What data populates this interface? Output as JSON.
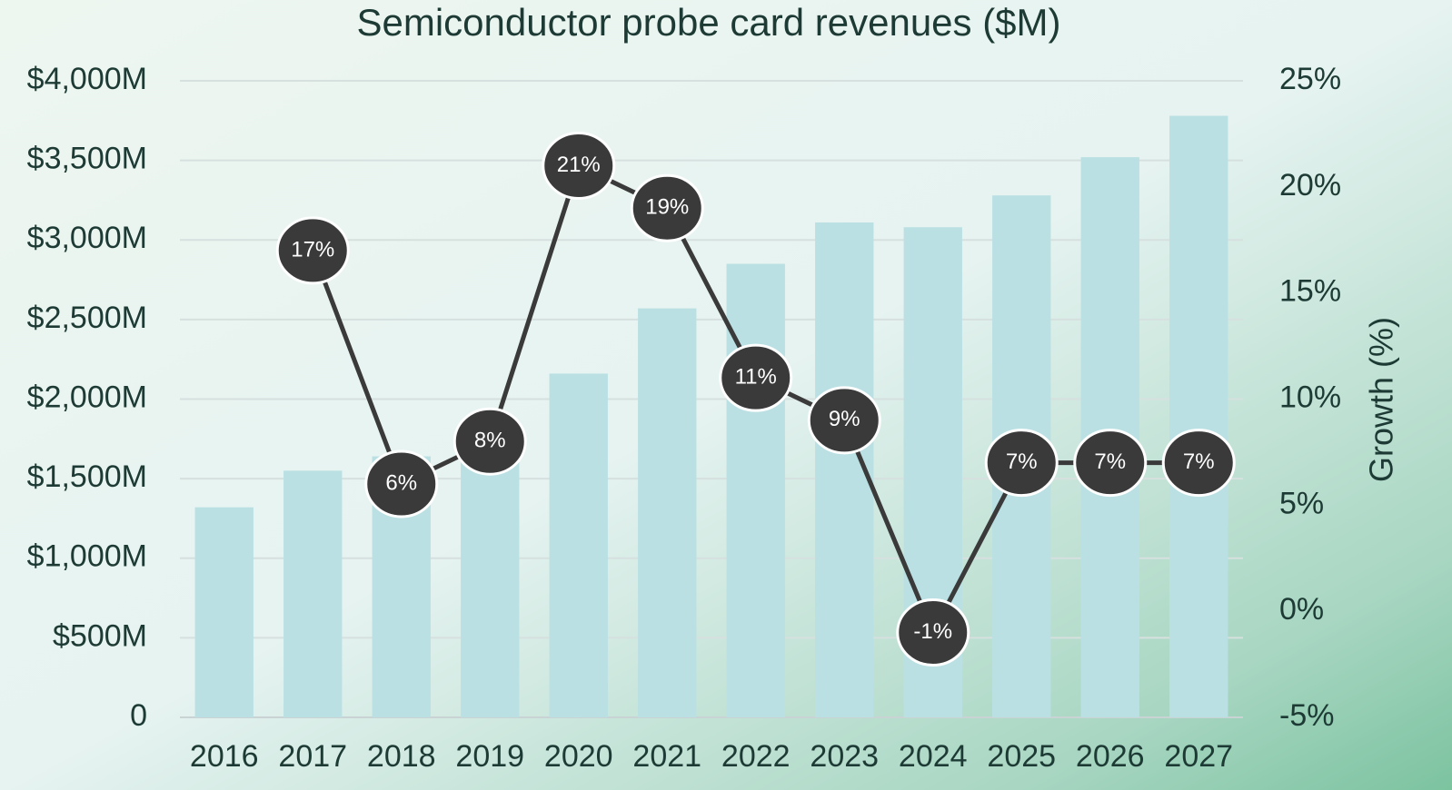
{
  "chart_data": {
    "type": "bar-line",
    "title": "Semiconductor probe card revenues ($M)",
    "y2_label": "Growth (%)",
    "categories": [
      "2016",
      "2017",
      "2018",
      "2019",
      "2020",
      "2021",
      "2022",
      "2023",
      "2024",
      "2025",
      "2026",
      "2027"
    ],
    "series": [
      {
        "type": "bar",
        "color": "#bae0e3",
        "values": [
          1320,
          1550,
          1640,
          1780,
          2160,
          2570,
          2850,
          3110,
          3080,
          3280,
          3520,
          3780
        ]
      },
      {
        "type": "line",
        "axis": "y2",
        "color": "#3a3a3a",
        "values": [
          null,
          17,
          6,
          8,
          21,
          19,
          11,
          9,
          -1,
          7,
          7,
          7
        ],
        "value_labels": [
          null,
          "17%",
          "6%",
          "8%",
          "21%",
          "19%",
          "11%",
          "9%",
          "-1%",
          "7%",
          "7%",
          "7%"
        ]
      }
    ],
    "ylim": [
      0,
      4000
    ],
    "yticks": [
      0,
      {
        "value": 500,
        "label": "$500M"
      },
      {
        "value": 1000,
        "label": "$1,000M"
      },
      {
        "value": 1500,
        "label": "$1,500M"
      },
      {
        "value": 2000,
        "label": "$2,000M"
      },
      {
        "value": 2500,
        "label": "$2,500M"
      },
      {
        "value": 3000,
        "label": "$3,000M"
      },
      {
        "value": 3500,
        "label": "$3,500M"
      },
      {
        "value": 4000,
        "label": "$4,000M"
      }
    ],
    "y2lim": [
      -5,
      25
    ],
    "y2ticks": [
      {
        "value": -5,
        "label": "-5%"
      },
      {
        "value": 0,
        "label": "0%"
      },
      {
        "value": 5,
        "label": "5%"
      },
      {
        "value": 10,
        "label": "10%"
      },
      {
        "value": 15,
        "label": "15%"
      },
      {
        "value": 20,
        "label": "20%"
      },
      {
        "value": 25,
        "label": "25%"
      }
    ],
    "grid": true
  }
}
